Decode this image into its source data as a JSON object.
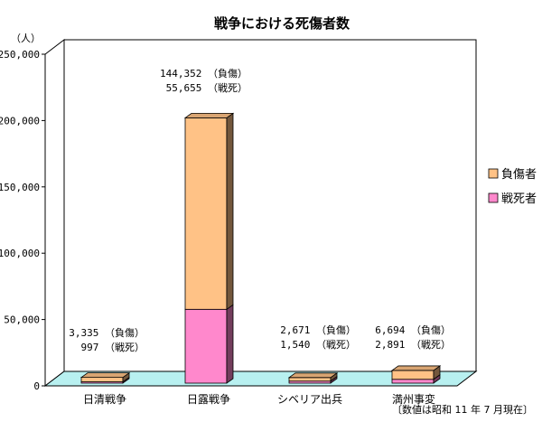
{
  "chart_data": {
    "type": "bar",
    "stacked": true,
    "title": "戦争における死傷者数",
    "unit_label": "（人）",
    "ylim": [
      0,
      250000
    ],
    "y_ticks": [
      "0",
      "50,000",
      "100,000",
      "150,000",
      "200,000",
      "250,000"
    ],
    "y_tick_values": [
      0,
      50000,
      100000,
      150000,
      200000,
      250000
    ],
    "grid": false,
    "legend_position": "right",
    "categories": [
      "日清戦争",
      "日露戦争",
      "シベリア出兵",
      "満州事変"
    ],
    "series": [
      {
        "name": "戦死者",
        "color": "#ff88cc",
        "values": [
          997,
          55655,
          1540,
          2891
        ]
      },
      {
        "name": "負傷者",
        "color": "#ffc286",
        "values": [
          3335,
          144352,
          2671,
          6694
        ]
      }
    ],
    "data_labels": [
      [
        "3,335 （負傷）",
        "997 （戦死）"
      ],
      [
        "144,352 （負傷）",
        "55,655 （戦死）"
      ],
      [
        "2,671 （負傷）",
        "1,540 （戦死）"
      ],
      [
        "6,694 （負傷）",
        "2,891 （戦死）"
      ]
    ],
    "legend": [
      "負傷者",
      "戦死者"
    ],
    "note": "〔数値は昭和 11 年 7 月現在〕",
    "colors": {
      "floor": "#b8f0f0",
      "wall": "#ffffff",
      "dead": "#ff88cc",
      "injured": "#ffc286"
    }
  }
}
